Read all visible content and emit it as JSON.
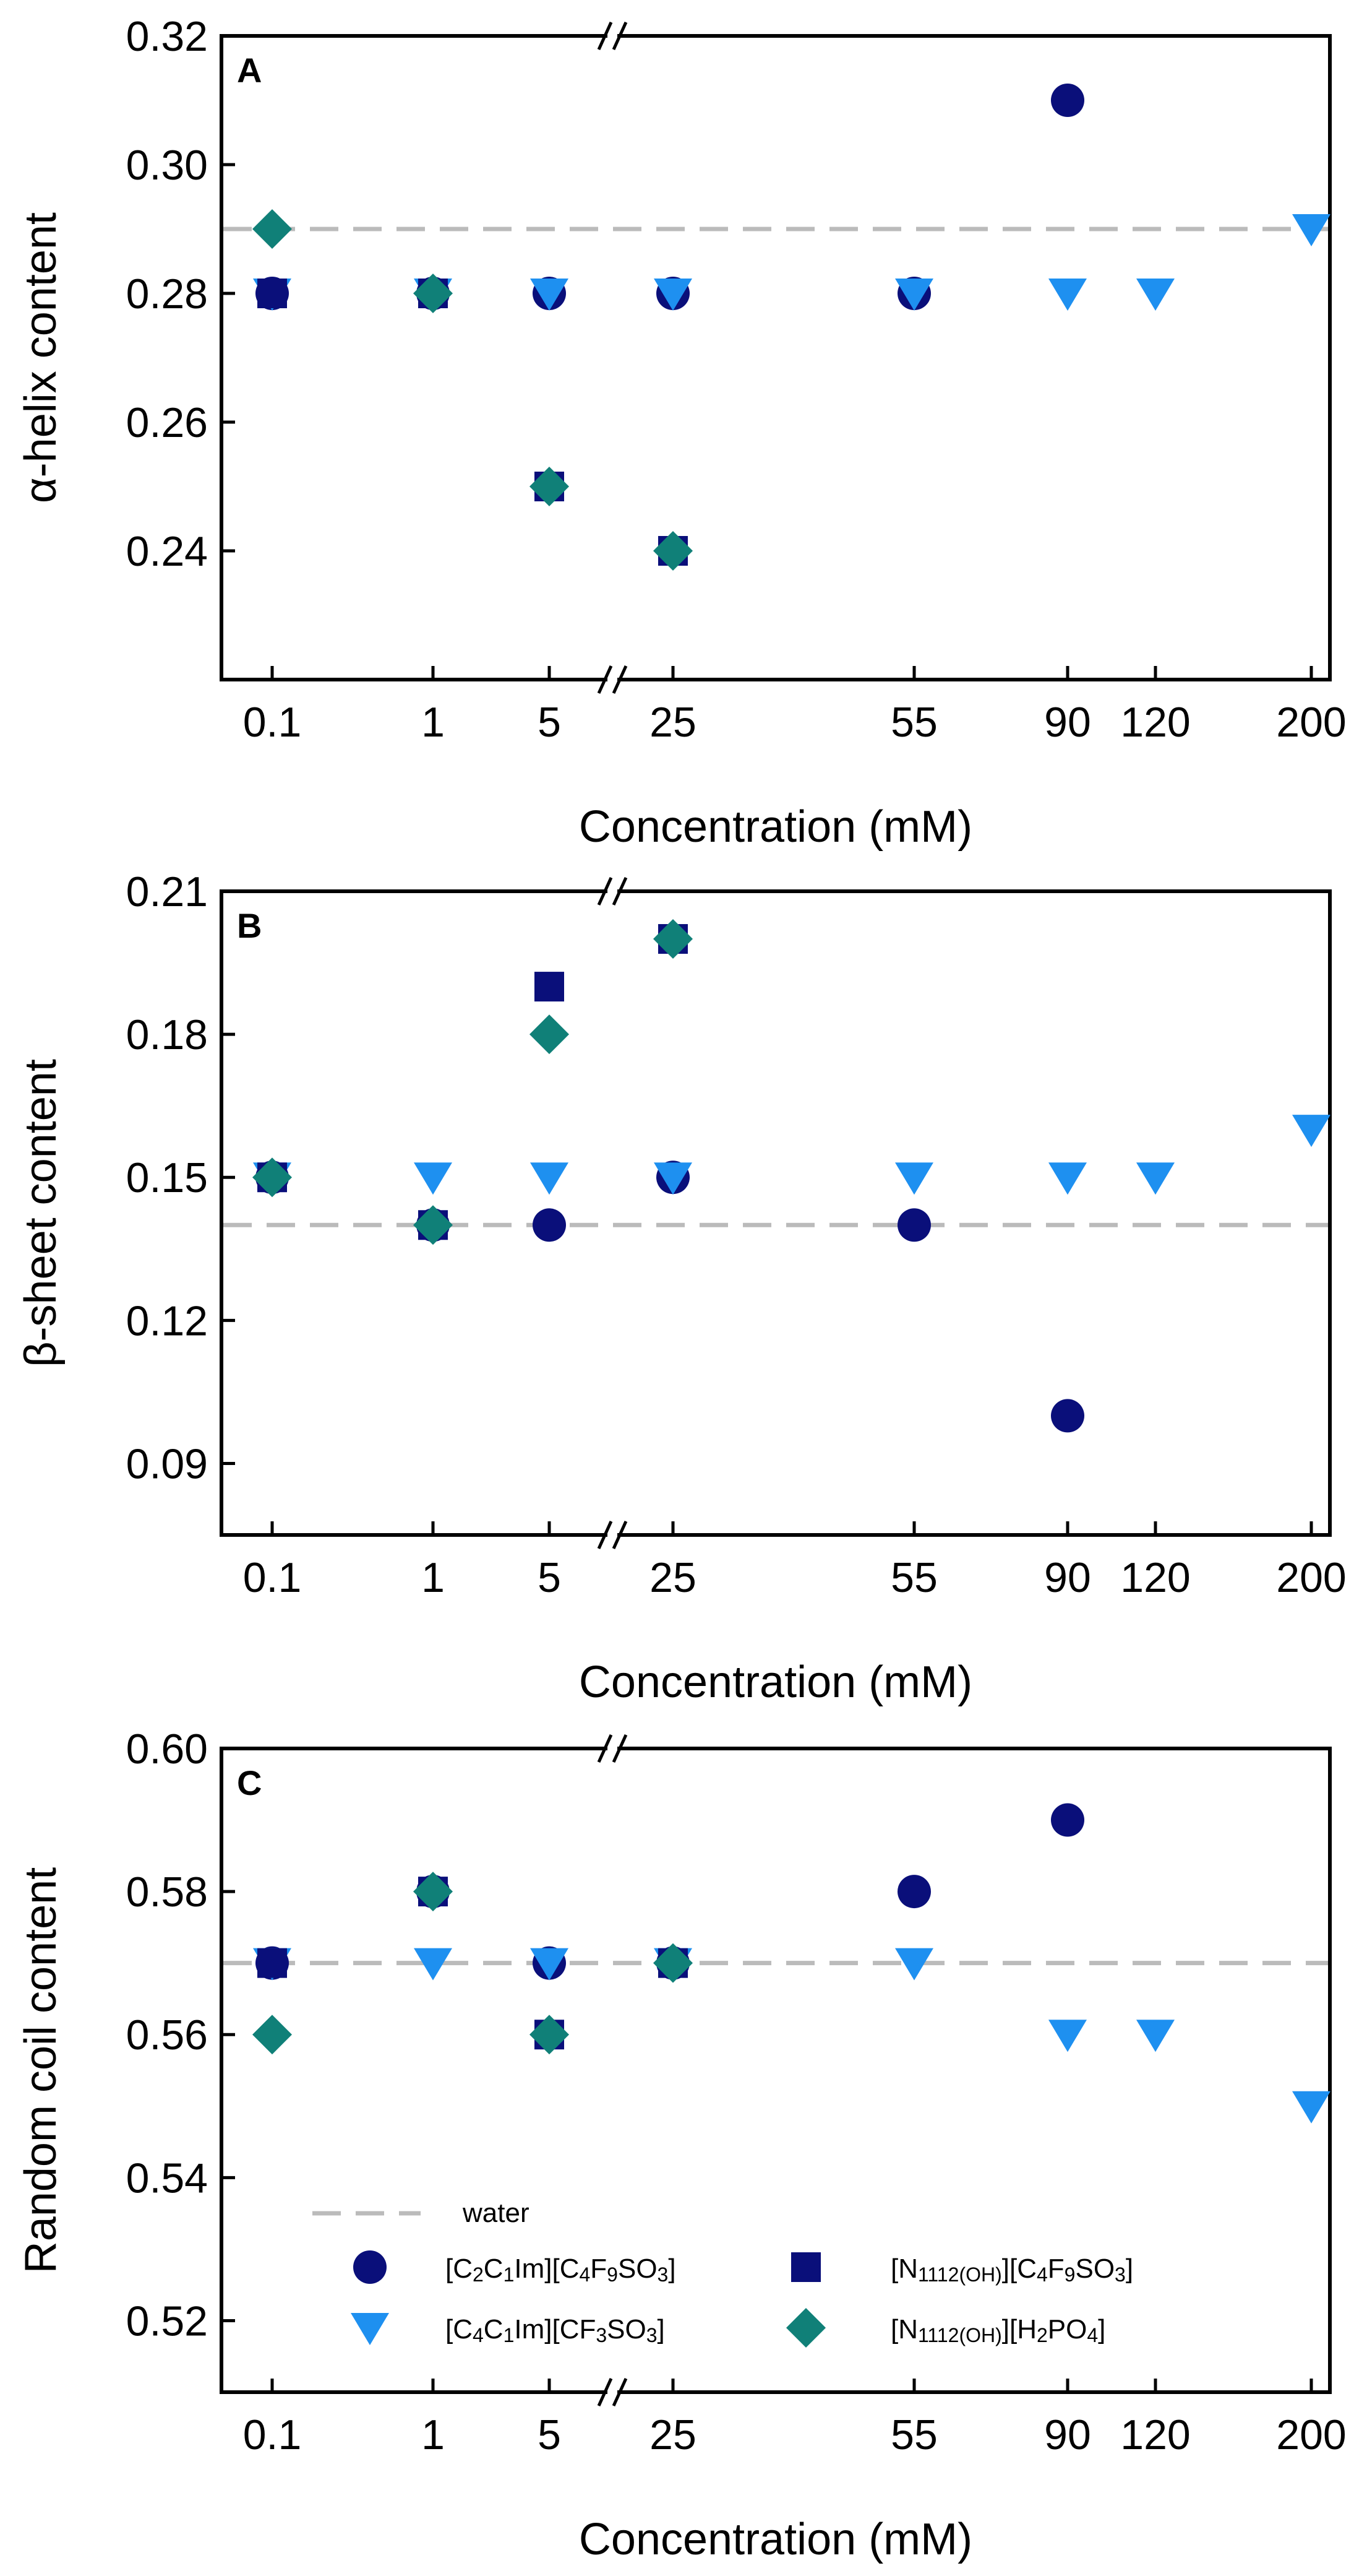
{
  "chart_data": [
    {
      "type": "scatter",
      "panel_label": "A",
      "xlabel": "Concentration (mM)",
      "ylabel": "α-helix content",
      "x_categories": [
        "0.1",
        "1",
        "5",
        "25",
        "55",
        "90",
        "120",
        "200"
      ],
      "ylim": [
        0.22,
        0.32
      ],
      "yticks": [
        0.24,
        0.26,
        0.28,
        0.3,
        0.32
      ],
      "ytick_labels": [
        "0.24",
        "0.26",
        "0.28",
        "0.30",
        "0.32"
      ],
      "water": 0.29,
      "series": [
        {
          "name": "[C2C1Im][C4F9SO3]",
          "marker": "circle",
          "x": [
            "0.1",
            "1",
            "5",
            "25",
            "55",
            "90"
          ],
          "values": [
            0.28,
            0.28,
            0.28,
            0.28,
            0.28,
            0.31
          ]
        },
        {
          "name": "[C4C1Im][CF3SO3]",
          "marker": "triangle",
          "x": [
            "0.1",
            "1",
            "5",
            "25",
            "55",
            "90",
            "120",
            "200"
          ],
          "values": [
            0.28,
            0.28,
            0.28,
            0.28,
            0.28,
            0.28,
            0.28,
            0.29
          ]
        },
        {
          "name": "[N1112(OH)][C4F9SO3]",
          "marker": "square",
          "x": [
            "0.1",
            "1",
            "5",
            "25"
          ],
          "values": [
            0.28,
            0.28,
            0.25,
            0.24
          ]
        },
        {
          "name": "[N1112(OH)][H2PO4]",
          "marker": "diamond",
          "x": [
            "0.1",
            "1",
            "5",
            "25"
          ],
          "values": [
            0.29,
            0.28,
            0.25,
            0.24
          ]
        }
      ]
    },
    {
      "type": "scatter",
      "panel_label": "B",
      "xlabel": "Concentration (mM)",
      "ylabel": "β-sheet content",
      "x_categories": [
        "0.1",
        "1",
        "5",
        "25",
        "55",
        "90",
        "120",
        "200"
      ],
      "ylim": [
        0.075,
        0.21
      ],
      "yticks": [
        0.09,
        0.12,
        0.15,
        0.18,
        0.21
      ],
      "ytick_labels": [
        "0.09",
        "0.12",
        "0.15",
        "0.18",
        "0.21"
      ],
      "water": 0.14,
      "series": [
        {
          "name": "[C2C1Im][C4F9SO3]",
          "marker": "circle",
          "x": [
            "0.1",
            "1",
            "5",
            "25",
            "55",
            "90"
          ],
          "values": [
            0.15,
            0.14,
            0.14,
            0.15,
            0.14,
            0.1
          ]
        },
        {
          "name": "[C4C1Im][CF3SO3]",
          "marker": "triangle",
          "x": [
            "0.1",
            "1",
            "5",
            "25",
            "55",
            "90",
            "120",
            "200"
          ],
          "values": [
            0.15,
            0.15,
            0.15,
            0.15,
            0.15,
            0.15,
            0.15,
            0.16
          ]
        },
        {
          "name": "[N1112(OH)][C4F9SO3]",
          "marker": "square",
          "x": [
            "0.1",
            "1",
            "5",
            "25"
          ],
          "values": [
            0.15,
            0.14,
            0.19,
            0.2
          ]
        },
        {
          "name": "[N1112(OH)][H2PO4]",
          "marker": "diamond",
          "x": [
            "0.1",
            "1",
            "5",
            "25"
          ],
          "values": [
            0.15,
            0.14,
            0.18,
            0.2
          ]
        }
      ]
    },
    {
      "type": "scatter",
      "panel_label": "C",
      "xlabel": "Concentration (mM)",
      "ylabel": "Random coil content",
      "x_categories": [
        "0.1",
        "1",
        "5",
        "25",
        "55",
        "90",
        "120",
        "200"
      ],
      "ylim": [
        0.51,
        0.6
      ],
      "yticks": [
        0.52,
        0.54,
        0.56,
        0.58,
        0.6
      ],
      "ytick_labels": [
        "0.52",
        "0.54",
        "0.56",
        "0.58",
        "0.60"
      ],
      "water": 0.57,
      "series": [
        {
          "name": "[C2C1Im][C4F9SO3]",
          "marker": "circle",
          "x": [
            "0.1",
            "1",
            "5",
            "25",
            "55",
            "90"
          ],
          "values": [
            0.57,
            0.58,
            0.57,
            0.57,
            0.58,
            0.59
          ]
        },
        {
          "name": "[C4C1Im][CF3SO3]",
          "marker": "triangle",
          "x": [
            "0.1",
            "1",
            "5",
            "25",
            "55",
            "90",
            "120",
            "200"
          ],
          "values": [
            0.57,
            0.57,
            0.57,
            0.57,
            0.57,
            0.56,
            0.56,
            0.55
          ]
        },
        {
          "name": "[N1112(OH)][C4F9SO3]",
          "marker": "square",
          "x": [
            "0.1",
            "1",
            "5",
            "25"
          ],
          "values": [
            0.57,
            0.58,
            0.56,
            0.57
          ]
        },
        {
          "name": "[N1112(OH)][H2PO4]",
          "marker": "diamond",
          "x": [
            "0.1",
            "1",
            "5",
            "25"
          ],
          "values": [
            0.56,
            0.58,
            0.56,
            0.57
          ]
        }
      ]
    }
  ],
  "legend": {
    "placement": "bottom-left of panel C",
    "water_label": "water",
    "items": [
      {
        "marker": "circle",
        "base": [
          "[C",
          "2",
          "C",
          "1",
          "Im][C",
          "4",
          "F",
          "9",
          "SO",
          "3",
          "]"
        ],
        "sub": [
          false,
          true,
          false,
          true,
          false,
          true,
          false,
          true,
          false,
          true,
          false
        ]
      },
      {
        "marker": "triangle",
        "base": [
          "[C",
          "4",
          "C",
          "1",
          "Im][CF",
          "3",
          "SO",
          "3",
          "]"
        ],
        "sub": [
          false,
          true,
          false,
          true,
          false,
          true,
          false,
          true,
          false
        ]
      },
      {
        "marker": "square",
        "base": [
          "[N",
          "1112(OH)",
          "][C",
          "4",
          "F",
          "9",
          "SO",
          "3",
          "]"
        ],
        "sub": [
          false,
          true,
          false,
          true,
          false,
          true,
          false,
          true,
          false
        ]
      },
      {
        "marker": "diamond",
        "base": [
          "[N",
          "1112(OH)",
          "][H",
          "2",
          "PO",
          "4",
          "]"
        ],
        "sub": [
          false,
          true,
          false,
          true,
          false,
          true,
          false
        ]
      }
    ]
  },
  "colors": {
    "circle": "#0a0f7a",
    "square": "#0a0f7a",
    "triangle": "#1e90f0",
    "diamond": "#108078",
    "water_line": "#bbbbbb",
    "axis": "#000000"
  }
}
